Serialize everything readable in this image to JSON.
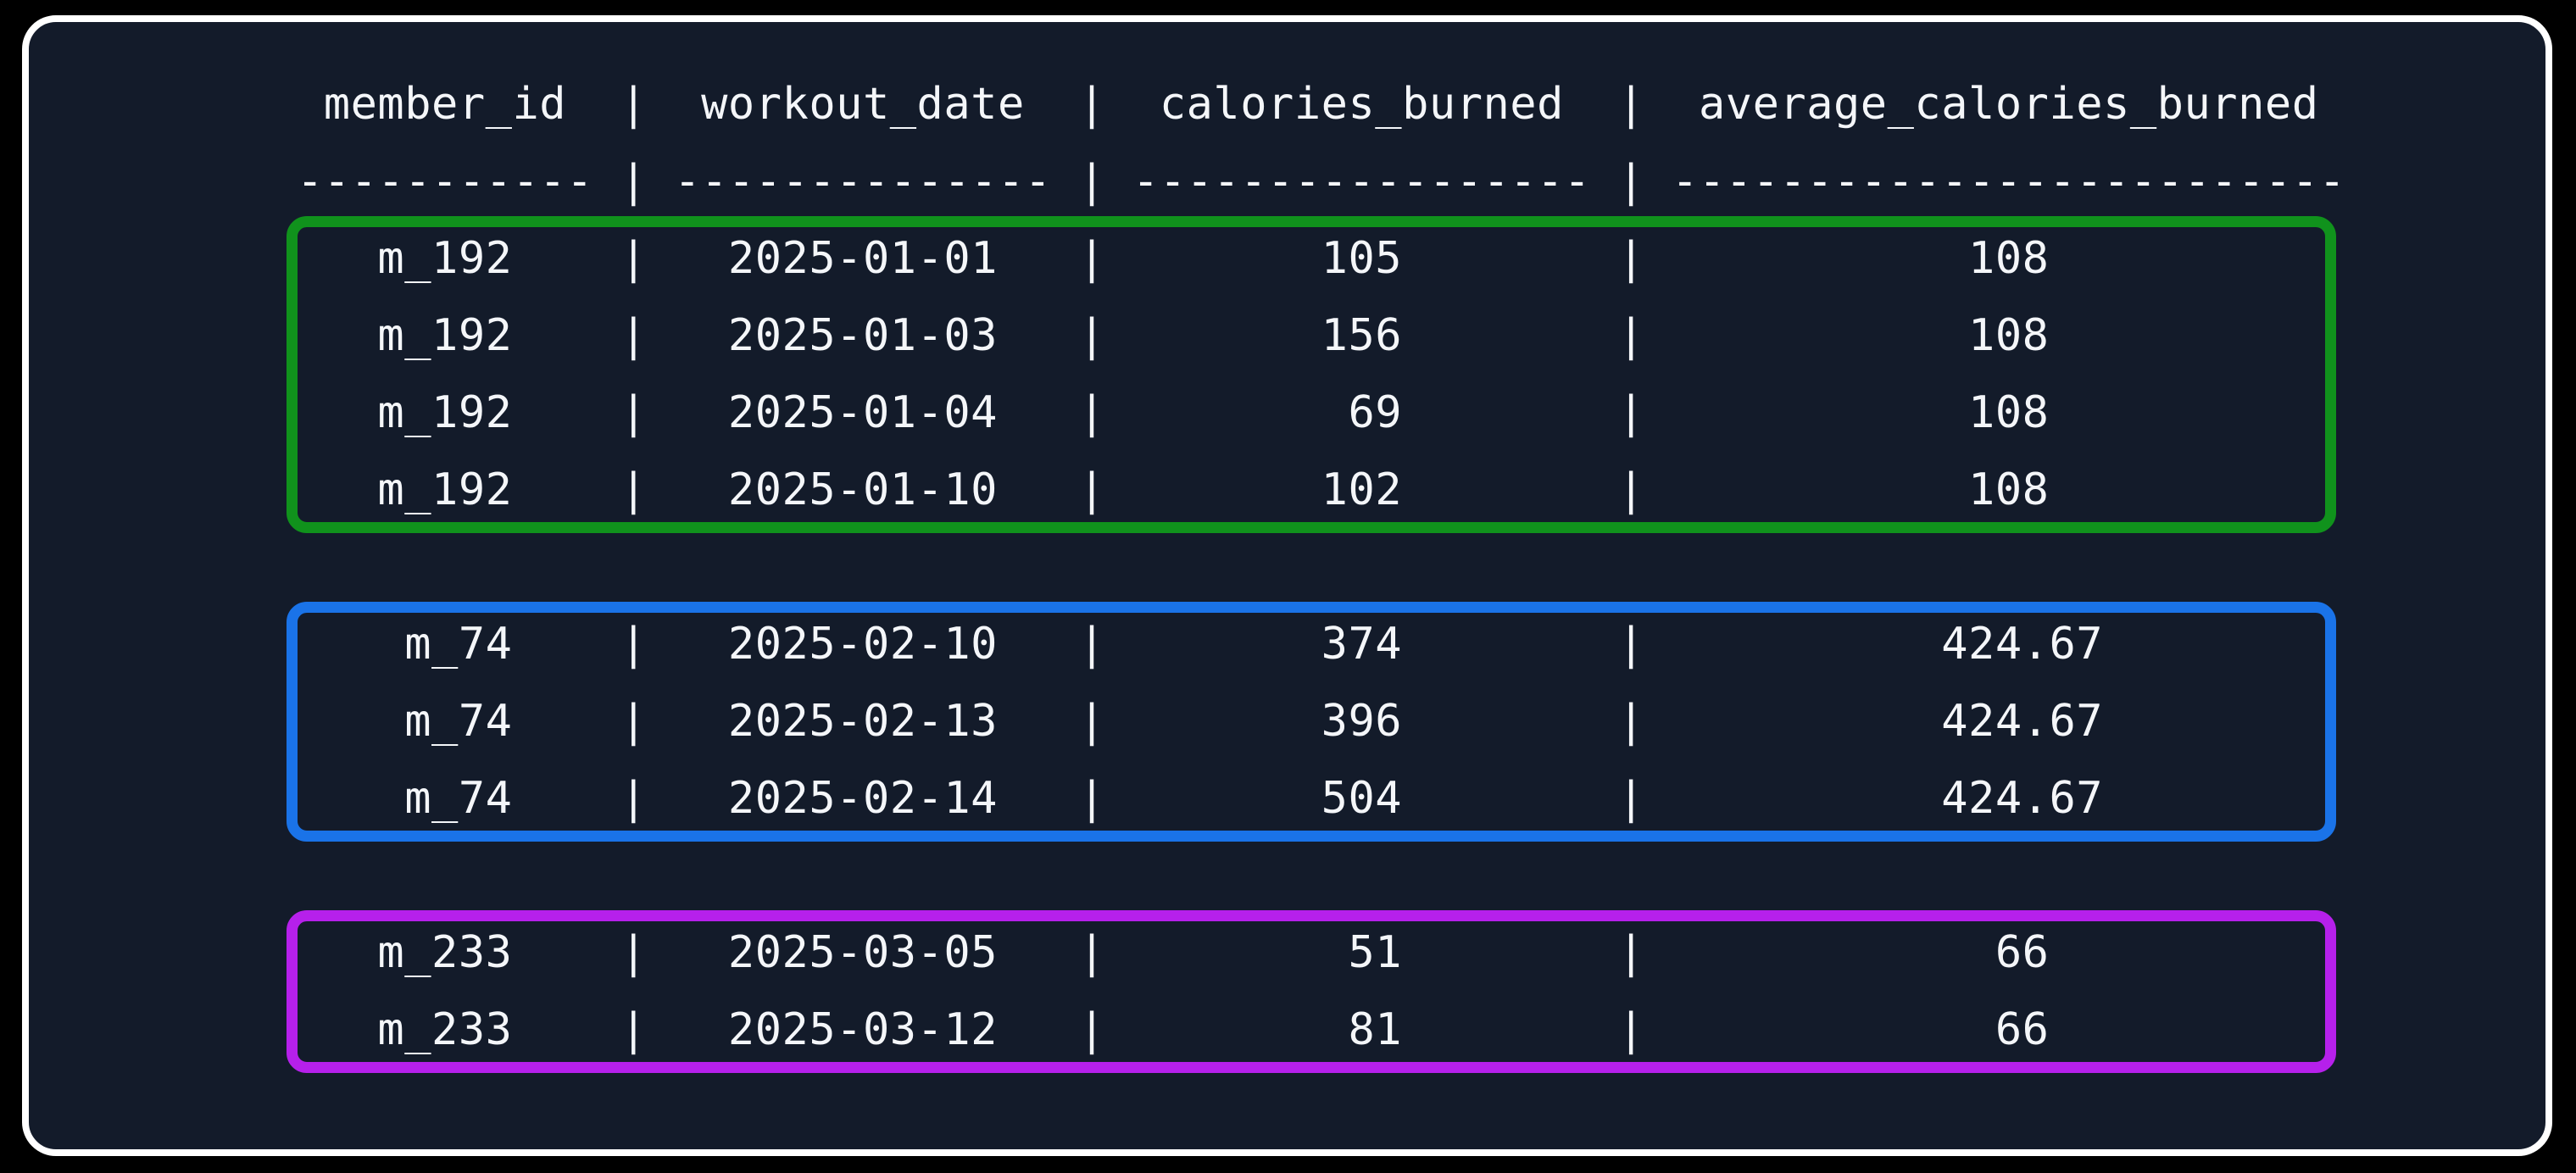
{
  "window": {
    "background": "#000000",
    "card_background": "#131b2a",
    "card_border_color": "#ffffff",
    "text_color": "#f4f6f9"
  },
  "table": {
    "column_separator": "|",
    "header_underline_char": "-",
    "columns": [
      {
        "label": "member_id"
      },
      {
        "label": "workout_date"
      },
      {
        "label": "calories_burned"
      },
      {
        "label": "average_calories_burned"
      }
    ],
    "groups": [
      {
        "highlight_color": "#10921c",
        "rows": [
          [
            "m_192",
            "2025-01-01",
            "105",
            "108"
          ],
          [
            "m_192",
            "2025-01-03",
            "156",
            "108"
          ],
          [
            "m_192",
            "2025-01-04",
            "69",
            "108"
          ],
          [
            "m_192",
            "2025-01-10",
            "102",
            "108"
          ]
        ]
      },
      {
        "highlight_color": "#1a73e8",
        "rows": [
          [
            "m_74",
            "2025-02-10",
            "374",
            "424.67"
          ],
          [
            "m_74",
            "2025-02-13",
            "396",
            "424.67"
          ],
          [
            "m_74",
            "2025-02-14",
            "504",
            "424.67"
          ]
        ]
      },
      {
        "highlight_color": "#b620eb",
        "rows": [
          [
            "m_233",
            "2025-03-05",
            "51",
            "66"
          ],
          [
            "m_233",
            "2025-03-12",
            "81",
            "66"
          ]
        ]
      }
    ]
  }
}
